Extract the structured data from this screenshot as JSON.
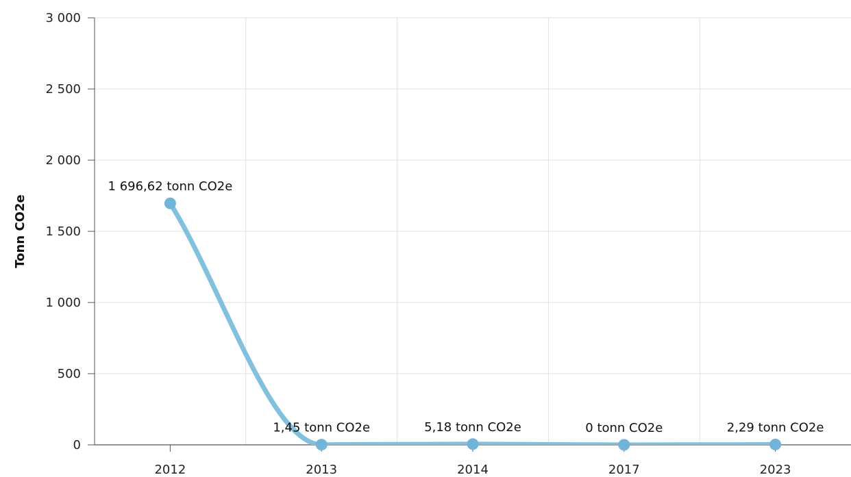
{
  "chart_data": {
    "type": "line",
    "title": "",
    "xlabel": "",
    "ylabel": "Tonn CO2e",
    "categories": [
      "2012",
      "2013",
      "2014",
      "2017",
      "2023"
    ],
    "series": [
      {
        "values": [
          1696.62,
          1.45,
          5.18,
          0,
          2.29
        ]
      }
    ],
    "data_labels": [
      "1 696,62 tonn CO2e",
      "1,45 tonn CO2e",
      "5,18 tonn CO2e",
      "0 tonn CO2e",
      "2,29 tonn CO2e"
    ],
    "ylim": [
      0,
      3000
    ],
    "yticks": [
      0,
      500,
      1000,
      1500,
      2000,
      2500,
      3000
    ],
    "ytick_labels": [
      "0",
      "500",
      "1 000",
      "1 500",
      "2 000",
      "2 500",
      "3 000"
    ],
    "grid": true,
    "smooth": true,
    "colors": {
      "line": "#80c1e0",
      "marker": "#6fb4d9",
      "grid": "#e0e0e0",
      "axis": "#555555"
    }
  }
}
